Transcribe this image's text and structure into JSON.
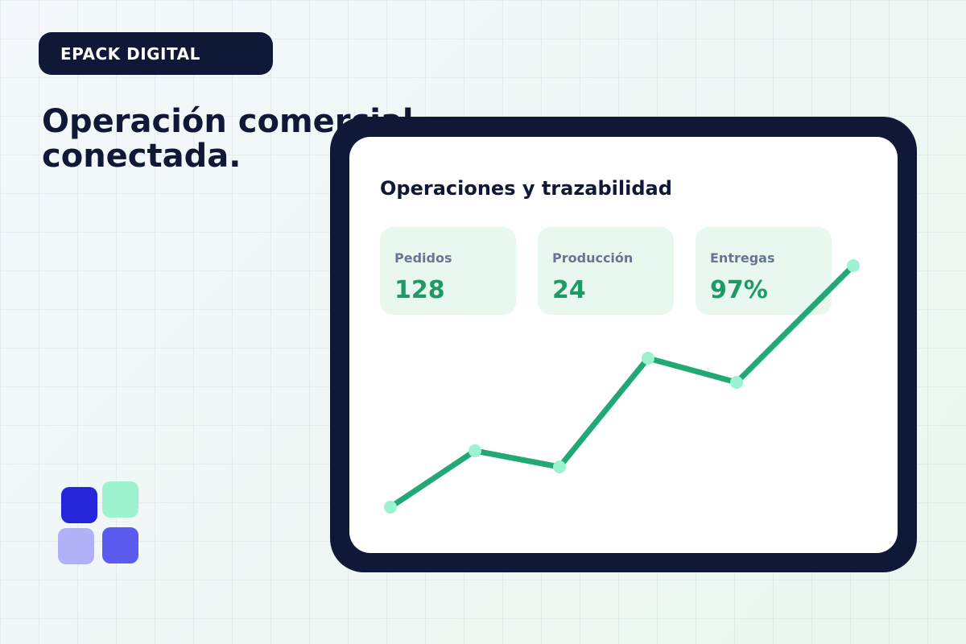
{
  "brand": {
    "name": "EPACK DIGITAL"
  },
  "hero": {
    "headline": "Operación comercial conectada."
  },
  "panel": {
    "title": "Operaciones y trazabilidad",
    "metrics": [
      {
        "label": "Pedidos",
        "value": "128"
      },
      {
        "label": "Producción",
        "value": "24"
      },
      {
        "label": "Entregas",
        "value": "97%"
      }
    ]
  },
  "chart_data": {
    "type": "line",
    "title": "",
    "xlabel": "",
    "ylabel": "",
    "grid": false,
    "x": [
      1,
      2,
      3,
      4,
      5,
      6
    ],
    "ylim": [
      0,
      100
    ],
    "series": [
      {
        "values": [
          20,
          34,
          30,
          57,
          51,
          80
        ]
      }
    ],
    "colors": {
      "line": "#22a874",
      "point": "#9df3cf"
    }
  },
  "colors": {
    "navy": "#0f1836",
    "green": "#1f9a64",
    "card_bg": "#e9f8ef"
  }
}
